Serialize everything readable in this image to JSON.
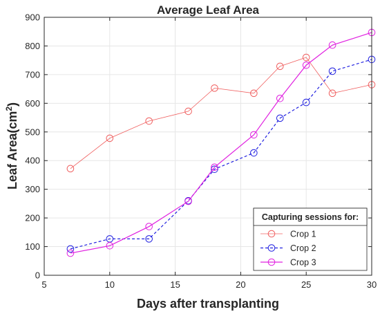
{
  "chart_data": {
    "type": "line",
    "title": "Average Leaf Area",
    "xlabel": "Days after transplanting",
    "ylabel_main": "Leaf Area(cm",
    "ylabel_sup": "2",
    "ylabel_end": ")",
    "xlim": [
      5,
      30
    ],
    "ylim": [
      0,
      900
    ],
    "xticks": [
      5,
      10,
      15,
      20,
      25,
      30
    ],
    "yticks": [
      0,
      100,
      200,
      300,
      400,
      500,
      600,
      700,
      800,
      900
    ],
    "grid": true,
    "legend_title": "Capturing sessions for:",
    "legend_position": "bottom-right",
    "series": [
      {
        "name": "Crop 1",
        "color": "#f06060",
        "line_style": "solid",
        "marker": "circle",
        "x": [
          7,
          10,
          13,
          16,
          18,
          21,
          23,
          25,
          27,
          30
        ],
        "y": [
          372,
          478,
          538,
          572,
          653,
          635,
          729,
          760,
          635,
          665
        ]
      },
      {
        "name": "Crop 2",
        "color": "#2020e0",
        "line_style": "dashed",
        "marker": "circle",
        "x": [
          7,
          10,
          13,
          16,
          18,
          21,
          23,
          25,
          27,
          30
        ],
        "y": [
          92,
          127,
          127,
          260,
          370,
          427,
          548,
          603,
          712,
          753
        ]
      },
      {
        "name": "Crop 3",
        "color": "#e020e0",
        "line_style": "solid",
        "marker": "circle",
        "x": [
          7,
          10,
          13,
          16,
          18,
          21,
          23,
          25,
          27,
          30
        ],
        "y": [
          77,
          103,
          170,
          258,
          377,
          490,
          617,
          733,
          803,
          847
        ]
      }
    ]
  }
}
